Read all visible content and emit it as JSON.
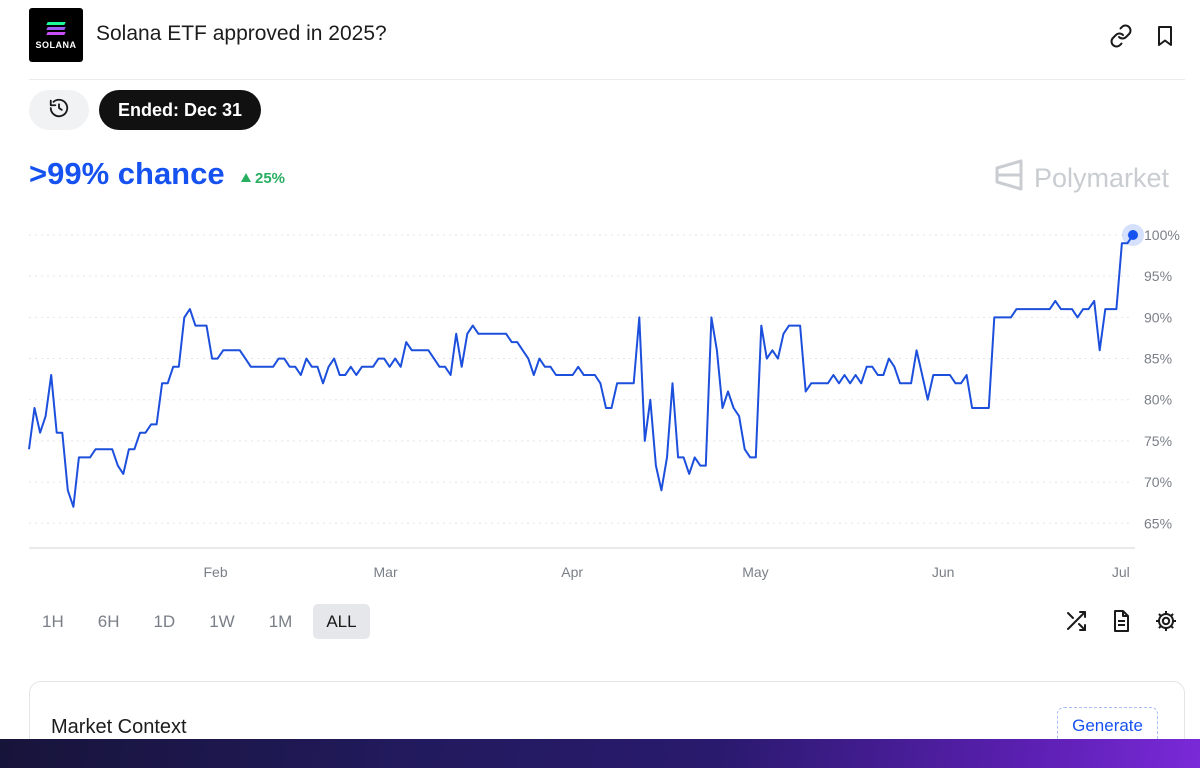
{
  "header": {
    "logo_text": "SOLANA",
    "title": "Solana ETF approved in 2025?",
    "icons": [
      "link-icon",
      "bookmark-icon"
    ]
  },
  "status": {
    "history_icon": "history-icon",
    "ended_label": "Ended: Dec 31"
  },
  "summary": {
    "chance_text": ">99% chance",
    "delta_text": "25%",
    "brand_name": "Polymarket"
  },
  "colors": {
    "accent": "#1652f0",
    "positive": "#27ae60",
    "line": "#1c4fdc"
  },
  "chart_data": {
    "type": "line",
    "x_label_ticks": [
      "Feb",
      "Mar",
      "Apr",
      "May",
      "Jun",
      "Jul"
    ],
    "y_tick_labels": [
      "100%",
      "95%",
      "90%",
      "85%",
      "80%",
      "75%",
      "70%",
      "65%"
    ],
    "ylim": [
      62,
      100
    ],
    "grid": true,
    "series": [
      {
        "values": [
          74,
          79,
          76,
          78,
          83,
          76,
          76,
          69,
          67,
          73,
          73,
          73,
          74,
          74,
          74,
          74,
          72,
          71,
          74,
          74,
          76,
          76,
          77,
          77,
          82,
          82,
          84,
          84,
          90,
          91,
          89,
          89,
          89,
          85,
          85,
          86,
          86,
          86,
          86,
          85,
          84,
          84,
          84,
          84,
          84,
          85,
          85,
          84,
          84,
          83,
          85,
          84,
          84,
          82,
          84,
          85,
          83,
          83,
          84,
          83,
          84,
          84,
          84,
          85,
          85,
          84,
          85,
          84,
          87,
          86,
          86,
          86,
          86,
          85,
          84,
          84,
          83,
          88,
          84,
          88,
          89,
          88,
          88,
          88,
          88,
          88,
          88,
          87,
          87,
          86,
          85,
          83,
          85,
          84,
          84,
          83,
          83,
          83,
          83,
          84,
          83,
          83,
          83,
          82,
          79,
          79,
          82,
          82,
          82,
          82,
          90,
          75,
          80,
          72,
          69,
          73,
          82,
          73,
          73,
          71,
          73,
          72,
          72,
          90,
          86,
          79,
          81,
          79,
          78,
          74,
          73,
          73,
          89,
          85,
          86,
          85,
          88,
          89,
          89,
          89,
          81,
          82,
          82,
          82,
          82,
          83,
          82,
          83,
          82,
          83,
          82,
          84,
          84,
          83,
          83,
          85,
          84,
          82,
          82,
          82,
          86,
          83,
          80,
          83,
          83,
          83,
          83,
          82,
          82,
          83,
          79,
          79,
          79,
          79,
          90,
          90,
          90,
          90,
          91,
          91,
          91,
          91,
          91,
          91,
          91,
          92,
          91,
          91,
          91,
          90,
          91,
          91,
          92,
          86,
          91,
          91,
          91,
          99,
          99,
          100
        ]
      }
    ]
  },
  "time_ranges": {
    "options": [
      "1H",
      "6H",
      "1D",
      "1W",
      "1M",
      "ALL"
    ],
    "selected": "ALL"
  },
  "toolbar_icons": [
    "shuffle-icon",
    "document-icon",
    "settings-icon"
  ],
  "market_context": {
    "title": "Market Context",
    "generate_label": "Generate"
  }
}
